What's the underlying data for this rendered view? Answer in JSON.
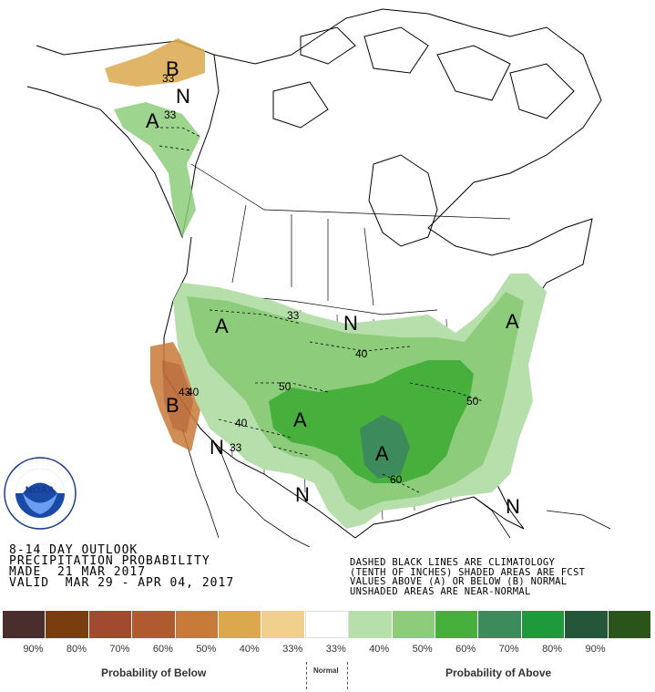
{
  "caption": {
    "line1": "8-14 DAY OUTLOOK",
    "line2": "PRECIPITATION PROBABILITY",
    "line3": "MADE  21 MAR 2017",
    "line4": "VALID  MAR 29 - APR 04, 2017"
  },
  "legend_note": {
    "line1": "DASHED BLACK LINES ARE CLIMATOLOGY",
    "line2": "(TENTH OF INCHES) SHADED AREAS ARE FCST",
    "line3": "VALUES ABOVE (A) OR BELOW (B) NORMAL",
    "line4": "UNSHADED AREAS ARE NEAR-NORMAL"
  },
  "legend": {
    "colors": [
      "#4a2e2e",
      "#7a3d10",
      "#a04a30",
      "#b05a30",
      "#c87a38",
      "#dba84e",
      "#f0d08c",
      "#ffffff",
      "#b7dfab",
      "#8ccc7a",
      "#47b03d",
      "#3d8a5c",
      "#1e9a3c",
      "#25563a",
      "#2a5419"
    ],
    "percents": [
      "90%",
      "80%",
      "70%",
      "60%",
      "50%",
      "40%",
      "33%",
      "33%",
      "40%",
      "50%",
      "60%",
      "70%",
      "80%",
      "90%"
    ],
    "below_label": "Probability of Below",
    "normal_label": "Normal",
    "above_label": "Probability of Above"
  },
  "map_labels": {
    "alaska_b": "B",
    "alaska_a": "A",
    "alaska_n": "N",
    "west_a": "A",
    "cal_b": "B",
    "central_a": "A",
    "south_a": "A",
    "northeast_a": "A",
    "n_north": "N",
    "n_southwest": "N",
    "n_texas": "N",
    "n_florida": "N"
  },
  "contours": [
    "33",
    "33",
    "33",
    "40",
    "50",
    "40",
    "33",
    "50",
    "60",
    "43",
    "40",
    "50"
  ],
  "logo": {
    "text": "NOAA",
    "ring_text": "NATIONAL OCEANIC AND ATMOSPHERIC ADMINISTRATION · U.S. DEPARTMENT OF COMMERCE"
  }
}
